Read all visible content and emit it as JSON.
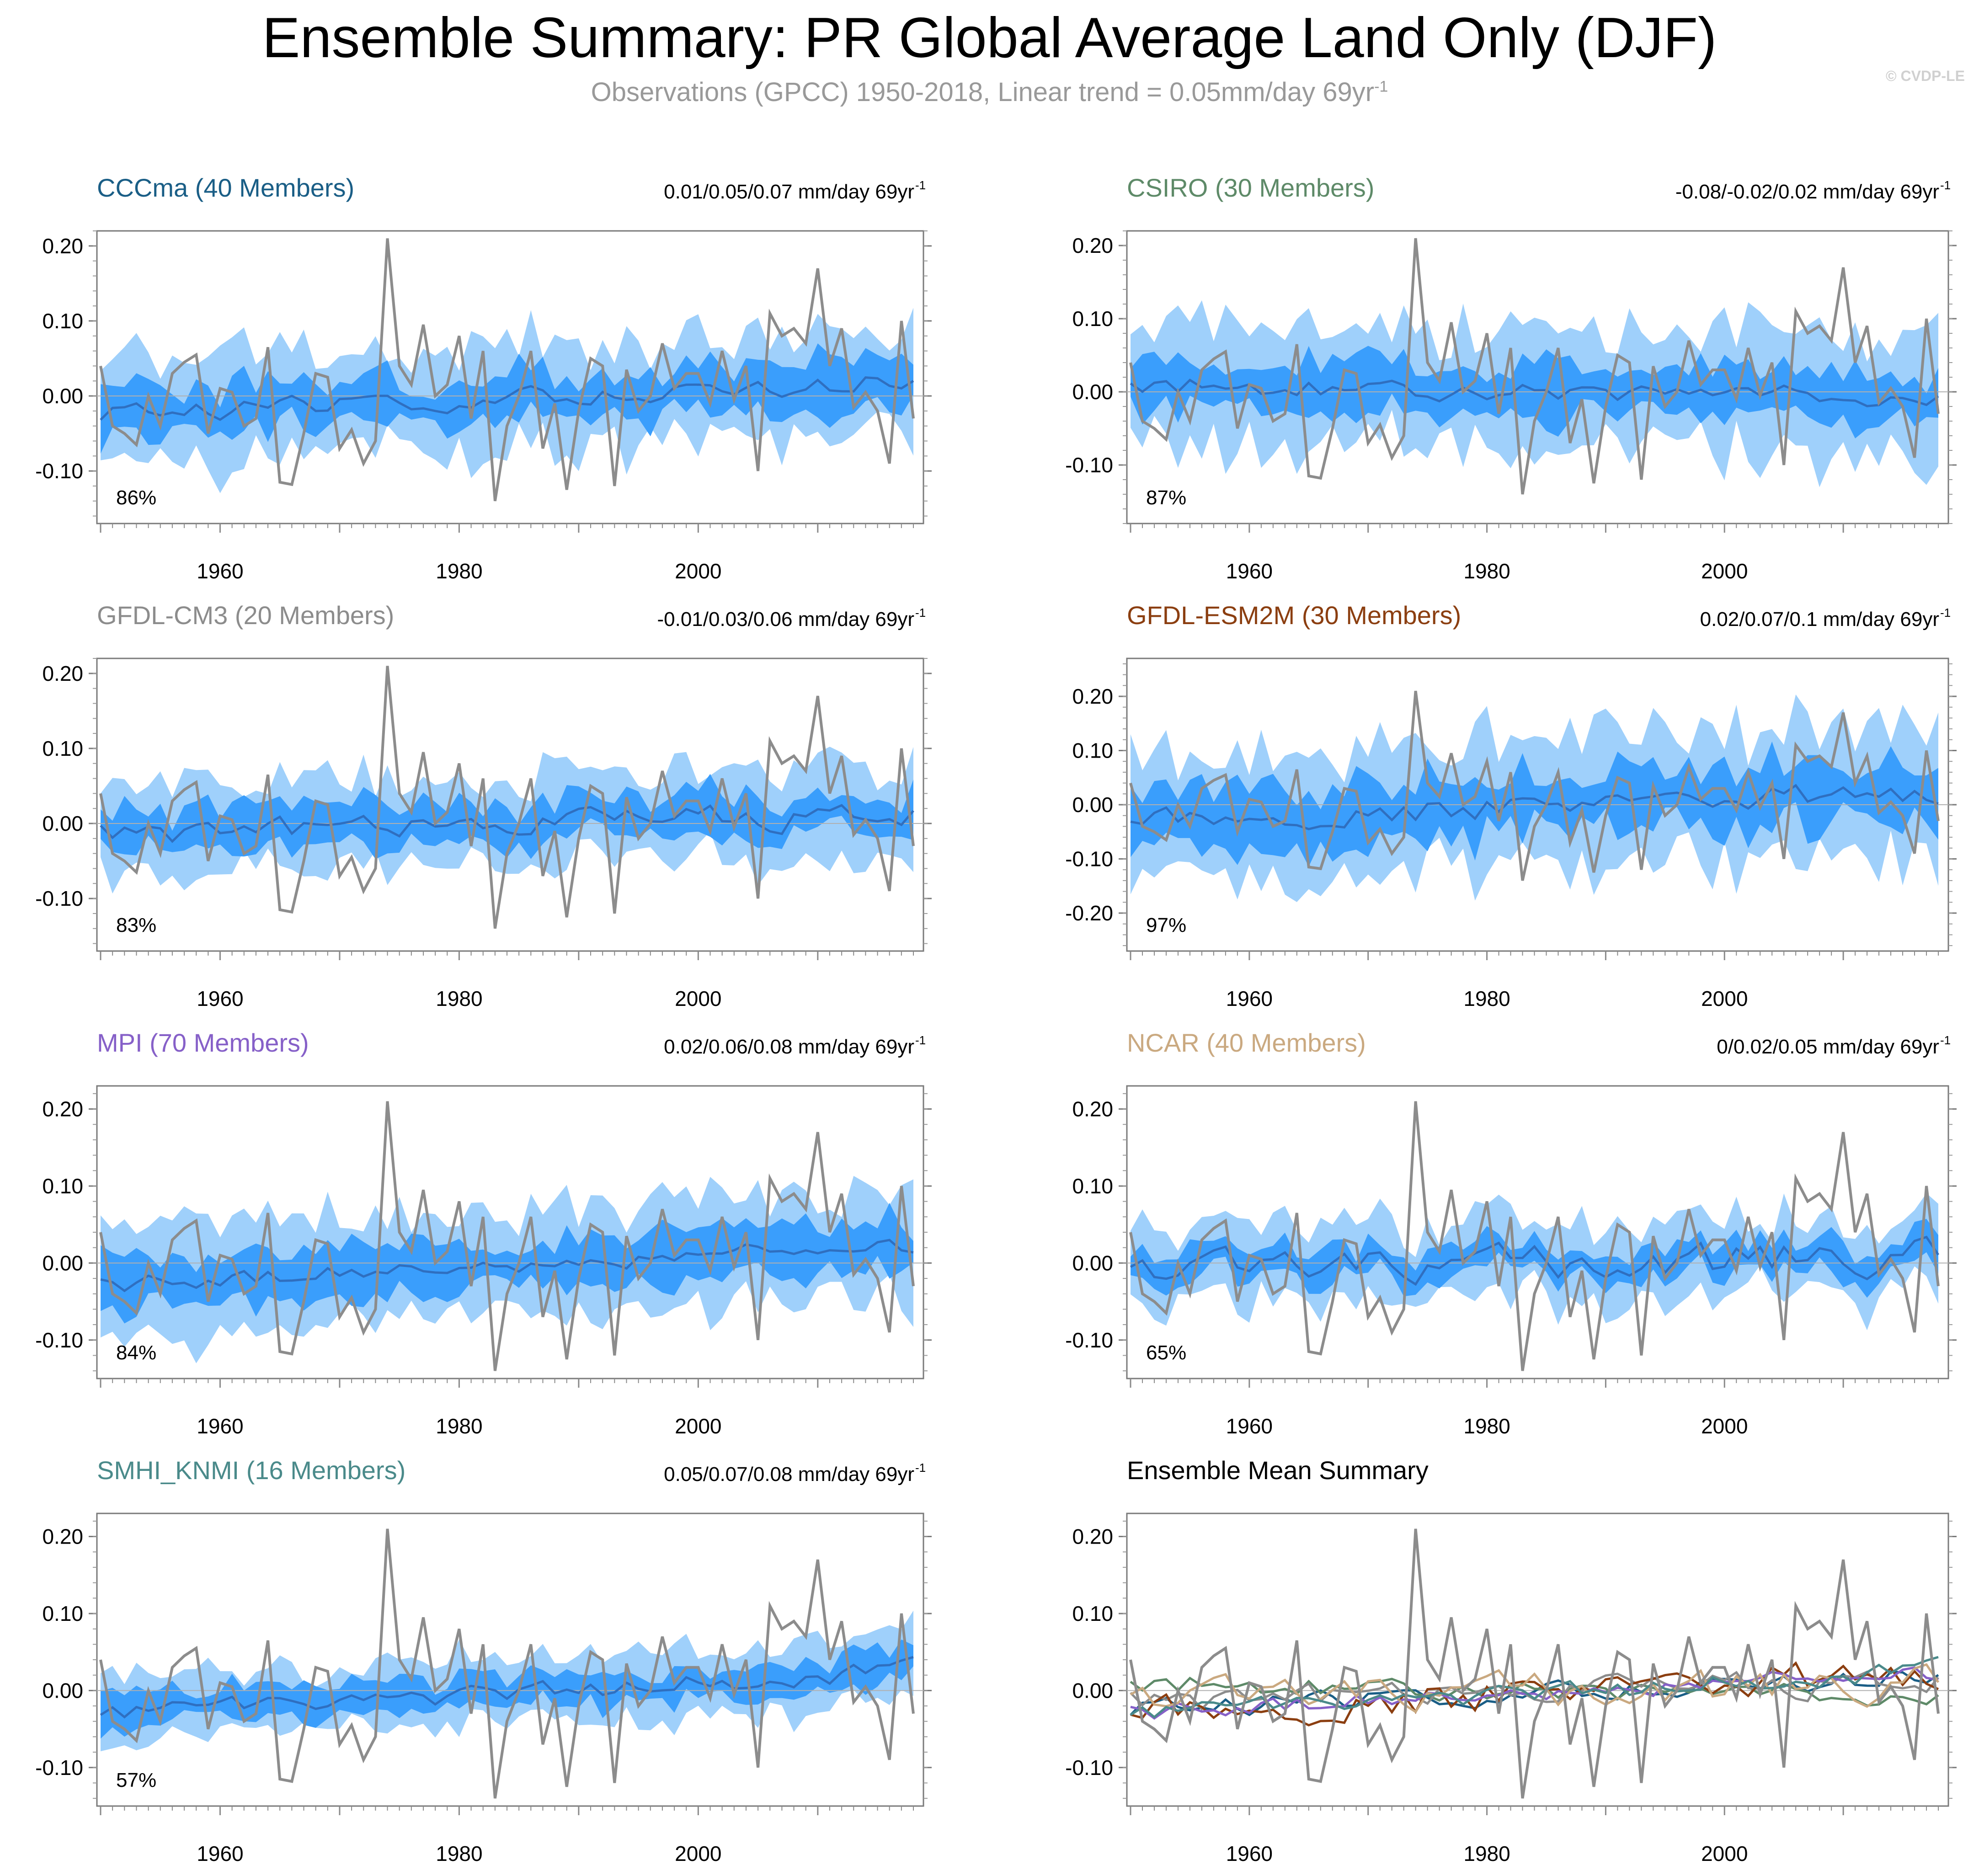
{
  "header": {
    "title": "Ensemble Summary: PR Global Average Land Only (DJF)",
    "subtitle_main": "Observations (GPCC) 1950-2018, Linear trend = 0.05mm/day 69yr",
    "subtitle_exp": "-1",
    "copyright": "© CVDP-LE"
  },
  "colors": {
    "outer_band": "#9fd0fb",
    "inner_band": "#3a9efc",
    "ensemble_mean": "#2f6fc0",
    "observations": "#8c8c8c",
    "zero_line": "#b0b0b0"
  },
  "chart_data": [
    {
      "type": "area",
      "title": "CCCma (40 Members)",
      "title_color": "#1a5e86",
      "trend_text": "0.01/0.05/0.07 mm/day 69yr",
      "trend_exp": "-1",
      "percent_label": "86%",
      "x_range": [
        1950,
        2018
      ],
      "ylim": [
        -0.17,
        0.22
      ],
      "yticks": [
        -0.1,
        0.0,
        0.1,
        0.2
      ],
      "ytick_labels": [
        "-0.10",
        "0.00",
        "0.10",
        "0.20"
      ],
      "xticks": [
        1960,
        1980,
        2000
      ],
      "xtick_labels": [
        "1960",
        "1980",
        "2000"
      ],
      "params": {
        "trend": 0.05,
        "inner": 0.04,
        "outer": 0.085,
        "mean_amp": 0.012,
        "seed": 3
      }
    },
    {
      "type": "area",
      "title": "CSIRO (30 Members)",
      "title_color": "#5e8a68",
      "trend_text": "-0.08/-0.02/0.02 mm/day 69yr",
      "trend_exp": "-1",
      "percent_label": "87%",
      "x_range": [
        1950,
        2018
      ],
      "ylim": [
        -0.18,
        0.22
      ],
      "yticks": [
        -0.1,
        0.0,
        0.1,
        0.2
      ],
      "ytick_labels": [
        "-0.10",
        "0.00",
        "0.10",
        "0.20"
      ],
      "xticks": [
        1960,
        1980,
        2000
      ],
      "xtick_labels": [
        "1960",
        "1980",
        "2000"
      ],
      "params": {
        "trend": -0.02,
        "inner": 0.045,
        "outer": 0.1,
        "mean_amp": 0.012,
        "seed": 7
      }
    },
    {
      "type": "area",
      "title": "GFDL-CM3 (20 Members)",
      "title_color": "#8c8c8c",
      "trend_text": "-0.01/0.03/0.06 mm/day 69yr",
      "trend_exp": "-1",
      "percent_label": "83%",
      "x_range": [
        1950,
        2018
      ],
      "ylim": [
        -0.17,
        0.22
      ],
      "yticks": [
        -0.1,
        0.0,
        0.1,
        0.2
      ],
      "ytick_labels": [
        "-0.10",
        "0.00",
        "0.10",
        "0.20"
      ],
      "xticks": [
        1960,
        1980,
        2000
      ],
      "xtick_labels": [
        "1960",
        "1980",
        "2000"
      ],
      "params": {
        "trend": 0.03,
        "inner": 0.035,
        "outer": 0.075,
        "mean_amp": 0.015,
        "seed": 11
      }
    },
    {
      "type": "area",
      "title": "GFDL-ESM2M (30 Members)",
      "title_color": "#8b3e10",
      "trend_text": "0.02/0.07/0.1 mm/day 69yr",
      "trend_exp": "-1",
      "percent_label": "97%",
      "x_range": [
        1950,
        2018
      ],
      "ylim": [
        -0.27,
        0.27
      ],
      "yticks": [
        -0.2,
        -0.1,
        0.0,
        0.1,
        0.2
      ],
      "ytick_labels": [
        "-0.20",
        "-0.10",
        "0.00",
        "0.10",
        "0.20"
      ],
      "xticks": [
        1960,
        1980,
        2000
      ],
      "xtick_labels": [
        "1960",
        "1980",
        "2000"
      ],
      "params": {
        "trend": 0.07,
        "inner": 0.07,
        "outer": 0.15,
        "mean_amp": 0.02,
        "seed": 19
      }
    },
    {
      "type": "area",
      "title": "MPI (70 Members)",
      "title_color": "#8660c8",
      "trend_text": "0.02/0.06/0.08 mm/day 69yr",
      "trend_exp": "-1",
      "percent_label": "84%",
      "x_range": [
        1950,
        2018
      ],
      "ylim": [
        -0.15,
        0.23
      ],
      "yticks": [
        -0.1,
        0.0,
        0.1,
        0.2
      ],
      "ytick_labels": [
        "-0.10",
        "0.00",
        "0.10",
        "0.20"
      ],
      "xticks": [
        1960,
        1980,
        2000
      ],
      "xtick_labels": [
        "1960",
        "1980",
        "2000"
      ],
      "params": {
        "trend": 0.06,
        "inner": 0.04,
        "outer": 0.085,
        "mean_amp": 0.01,
        "seed": 23
      }
    },
    {
      "type": "area",
      "title": "NCAR (40 Members)",
      "title_color": "#caa980",
      "trend_text": "0/0.02/0.05 mm/day 69yr",
      "trend_exp": "-1",
      "percent_label": "65%",
      "x_range": [
        1950,
        2018
      ],
      "ylim": [
        -0.15,
        0.23
      ],
      "yticks": [
        -0.1,
        0.0,
        0.1,
        0.2
      ],
      "ytick_labels": [
        "-0.10",
        "0.00",
        "0.10",
        "0.20"
      ],
      "xticks": [
        1960,
        1980,
        2000
      ],
      "xtick_labels": [
        "1960",
        "1980",
        "2000"
      ],
      "params": {
        "trend": 0.02,
        "inner": 0.025,
        "outer": 0.06,
        "mean_amp": 0.02,
        "seed": 31
      }
    },
    {
      "type": "area",
      "title": "SMHI_KNMI (16 Members)",
      "title_color": "#4a8a8a",
      "trend_text": "0.05/0.07/0.08 mm/day 69yr",
      "trend_exp": "-1",
      "percent_label": "57%",
      "x_range": [
        1950,
        2018
      ],
      "ylim": [
        -0.15,
        0.23
      ],
      "yticks": [
        -0.1,
        0.0,
        0.1,
        0.2
      ],
      "ytick_labels": [
        "-0.10",
        "0.00",
        "0.10",
        "0.20"
      ],
      "xticks": [
        1960,
        1980,
        2000
      ],
      "xtick_labels": [
        "1960",
        "1980",
        "2000"
      ],
      "params": {
        "trend": 0.07,
        "inner": 0.025,
        "outer": 0.055,
        "mean_amp": 0.012,
        "seed": 37
      }
    },
    {
      "type": "line",
      "title": "Ensemble Mean Summary",
      "title_color": "#000000",
      "trend_text": "",
      "trend_exp": "",
      "percent_label": "",
      "x_range": [
        1950,
        2018
      ],
      "ylim": [
        -0.15,
        0.23
      ],
      "yticks": [
        -0.1,
        0.0,
        0.1,
        0.2
      ],
      "ytick_labels": [
        "-0.10",
        "0.00",
        "0.10",
        "0.20"
      ],
      "xticks": [
        1960,
        1980,
        2000
      ],
      "xtick_labels": [
        "1960",
        "1980",
        "2000"
      ],
      "series_colors": [
        "#1a5e86",
        "#5e8a68",
        "#8c8c8c",
        "#8b3e10",
        "#8660c8",
        "#caa980",
        "#4a8a8a"
      ]
    }
  ],
  "observations": {
    "name": "GPCC",
    "years": [
      1950,
      1951,
      1952,
      1953,
      1954,
      1955,
      1956,
      1957,
      1958,
      1959,
      1960,
      1961,
      1962,
      1963,
      1964,
      1965,
      1966,
      1967,
      1968,
      1969,
      1970,
      1971,
      1972,
      1973,
      1974,
      1975,
      1976,
      1977,
      1978,
      1979,
      1980,
      1981,
      1982,
      1983,
      1984,
      1985,
      1986,
      1987,
      1988,
      1989,
      1990,
      1991,
      1992,
      1993,
      1994,
      1995,
      1996,
      1997,
      1998,
      1999,
      2000,
      2001,
      2002,
      2003,
      2004,
      2005,
      2006,
      2007,
      2008,
      2009,
      2010,
      2011,
      2012,
      2013,
      2014,
      2015,
      2016,
      2017,
      2018
    ],
    "values": [
      0.04,
      -0.04,
      -0.05,
      -0.065,
      0.0,
      -0.04,
      0.03,
      0.045,
      0.055,
      -0.05,
      0.01,
      0.005,
      -0.04,
      -0.03,
      0.065,
      -0.115,
      -0.118,
      -0.05,
      0.03,
      0.025,
      -0.07,
      -0.045,
      -0.09,
      -0.06,
      0.21,
      0.04,
      0.015,
      0.095,
      0.0,
      0.015,
      0.08,
      -0.03,
      0.06,
      -0.14,
      -0.04,
      0.0,
      0.06,
      -0.07,
      -0.01,
      -0.125,
      -0.02,
      0.05,
      0.04,
      -0.12,
      0.035,
      -0.02,
      0.0,
      0.07,
      0.01,
      0.03,
      0.03,
      -0.01,
      0.06,
      -0.005,
      0.04,
      -0.1,
      0.11,
      0.08,
      0.09,
      0.07,
      0.17,
      0.04,
      0.09,
      -0.015,
      0.005,
      -0.02,
      -0.09,
      0.1,
      -0.03
    ]
  }
}
